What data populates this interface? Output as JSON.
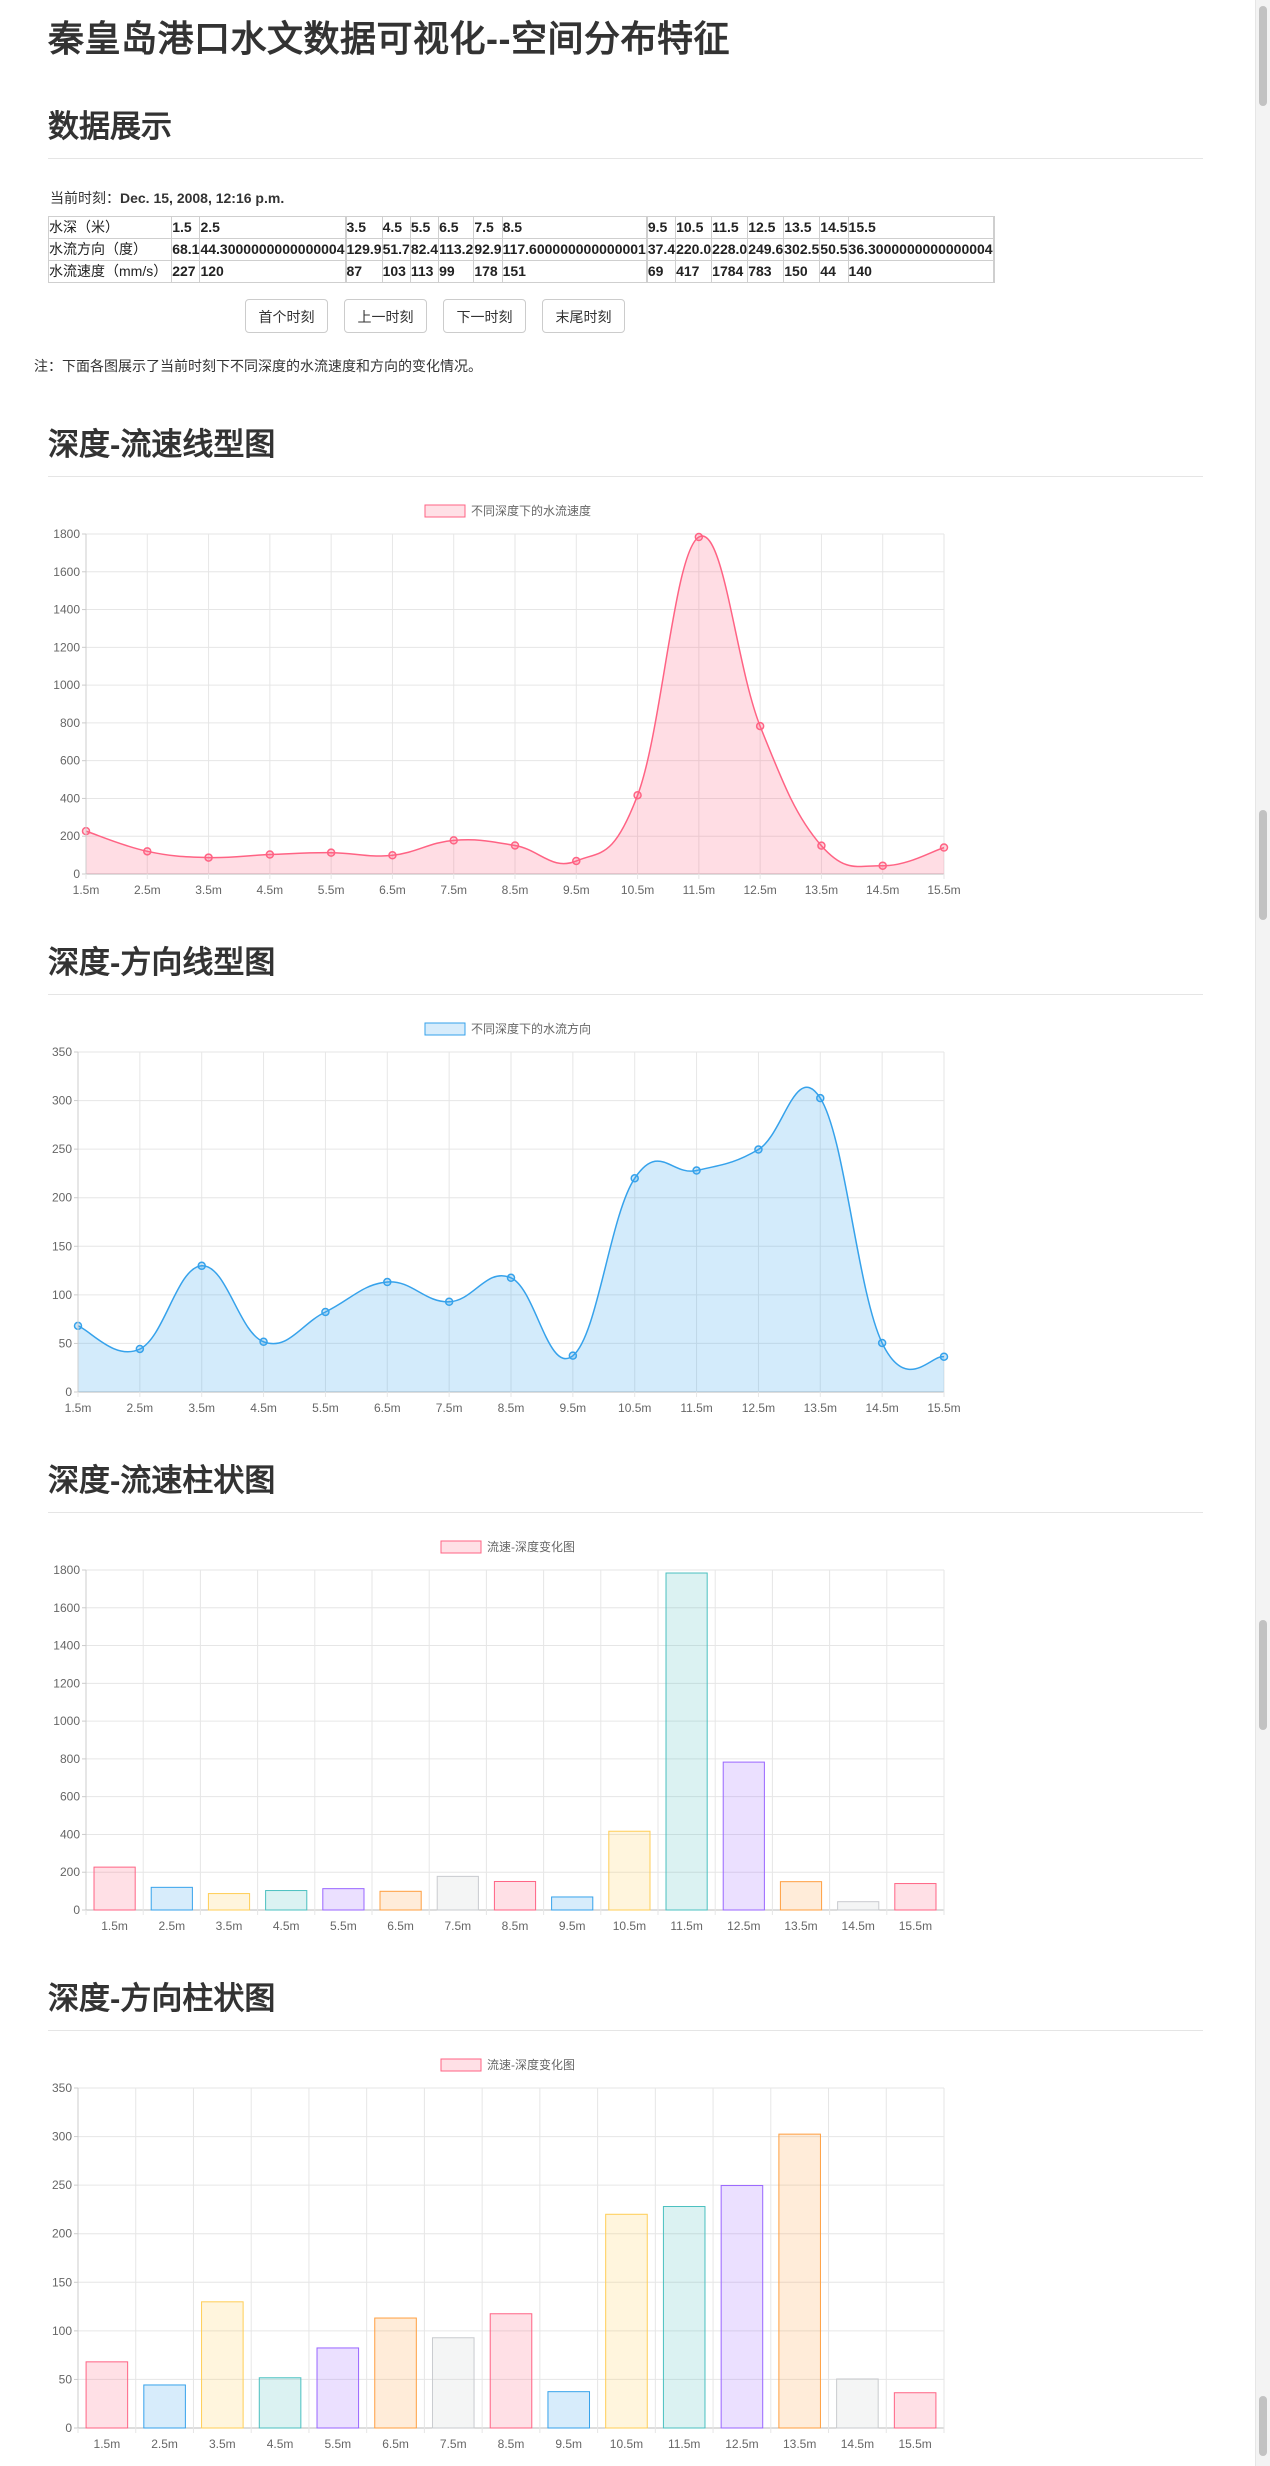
{
  "page": {
    "title": "秦皇岛港口水文数据可视化--空间分布特征",
    "section_display": "数据展示",
    "current_time_label": "当前时刻：",
    "current_time_value": "Dec. 15, 2008, 12:16 p.m.",
    "note": "注：下面各图展示了当前时刻下不同深度的水流速度和方向的变化情况。"
  },
  "table": {
    "rows": [
      {
        "label": "水深（米）",
        "values": [
          "1.5",
          "2.5",
          "",
          "3.5",
          "4.5",
          "5.5",
          "6.5",
          "7.5",
          "8.5",
          "",
          "9.5",
          "10.5",
          "11.5",
          "12.5",
          "13.5",
          "14.5",
          "15.5",
          ""
        ]
      },
      {
        "label": "水流方向（度）",
        "values": [
          "68.1",
          "44.3000000000000004",
          "",
          "129.9",
          "51.7",
          "82.4",
          "113.2",
          "92.9",
          "117.600000000000001",
          "",
          "37.4",
          "220.0",
          "228.0",
          "249.6",
          "302.5",
          "50.5",
          "36.3000000000000004",
          ""
        ]
      },
      {
        "label": "水流速度（mm/s）",
        "values": [
          "227",
          "120",
          "",
          "87",
          "103",
          "113",
          "99",
          "178",
          "151",
          "",
          "69",
          "417",
          "1784",
          "783",
          "150",
          "44",
          "140",
          ""
        ]
      }
    ]
  },
  "buttons": {
    "first": "首个时刻",
    "prev": "上一时刻",
    "next": "下一时刻",
    "last": "末尾时刻"
  },
  "sections": {
    "speed_line": "深度-流速线型图",
    "dir_line": "深度-方向线型图",
    "speed_bar": "深度-流速柱状图",
    "dir_bar": "深度-方向柱状图"
  },
  "chart_data": [
    {
      "type": "line",
      "title": "",
      "legend": "不同深度下的水流速度",
      "categories": [
        "1.5m",
        "2.5m",
        "3.5m",
        "4.5m",
        "5.5m",
        "6.5m",
        "7.5m",
        "8.5m",
        "9.5m",
        "10.5m",
        "11.5m",
        "12.5m",
        "13.5m",
        "14.5m",
        "15.5m"
      ],
      "values": [
        227,
        120,
        87,
        103,
        113,
        99,
        178,
        151,
        69,
        417,
        1784,
        783,
        150,
        44,
        140
      ],
      "ylim": [
        0,
        1800
      ],
      "yticks": [
        0,
        200,
        400,
        600,
        800,
        1000,
        1200,
        1400,
        1600,
        1800
      ],
      "color": "#ff6384",
      "fill": "rgba(255,99,132,0.22)",
      "grid": true,
      "legend_position": "top"
    },
    {
      "type": "line",
      "title": "",
      "legend": "不同深度下的水流方向",
      "categories": [
        "1.5m",
        "2.5m",
        "3.5m",
        "4.5m",
        "5.5m",
        "6.5m",
        "7.5m",
        "8.5m",
        "9.5m",
        "10.5m",
        "11.5m",
        "12.5m",
        "13.5m",
        "14.5m",
        "15.5m"
      ],
      "values": [
        68.1,
        44.3,
        129.9,
        51.7,
        82.4,
        113.2,
        92.9,
        117.6,
        37.4,
        220.0,
        228.0,
        249.6,
        302.5,
        50.5,
        36.3
      ],
      "ylim": [
        0,
        350
      ],
      "yticks": [
        0,
        50,
        100,
        150,
        200,
        250,
        300,
        350
      ],
      "color": "#36a2eb",
      "fill": "rgba(54,162,235,0.22)",
      "grid": true,
      "legend_position": "top"
    },
    {
      "type": "bar",
      "title": "",
      "legend": "流速-深度变化图",
      "categories": [
        "1.5m",
        "2.5m",
        "3.5m",
        "4.5m",
        "5.5m",
        "6.5m",
        "7.5m",
        "8.5m",
        "9.5m",
        "10.5m",
        "11.5m",
        "12.5m",
        "13.5m",
        "14.5m",
        "15.5m"
      ],
      "values": [
        227,
        120,
        87,
        103,
        113,
        99,
        178,
        151,
        69,
        417,
        1784,
        783,
        150,
        44,
        140
      ],
      "ylim": [
        0,
        1800
      ],
      "yticks": [
        0,
        200,
        400,
        600,
        800,
        1000,
        1200,
        1400,
        1600,
        1800
      ],
      "bar_colors": [
        "#ff6384",
        "#36a2eb",
        "#ffce56",
        "#4bc0c0",
        "#9966ff",
        "#ff9f40",
        "#c9cbcf"
      ],
      "grid": true,
      "legend_position": "top"
    },
    {
      "type": "bar",
      "title": "",
      "legend": "流速-深度变化图",
      "categories": [
        "1.5m",
        "2.5m",
        "3.5m",
        "4.5m",
        "5.5m",
        "6.5m",
        "7.5m",
        "8.5m",
        "9.5m",
        "10.5m",
        "11.5m",
        "12.5m",
        "13.5m",
        "14.5m",
        "15.5m"
      ],
      "values": [
        68.1,
        44.3,
        129.9,
        51.7,
        82.4,
        113.2,
        92.9,
        117.6,
        37.4,
        220.0,
        228.0,
        249.6,
        302.5,
        50.5,
        36.3
      ],
      "ylim": [
        0,
        350
      ],
      "yticks": [
        0,
        50,
        100,
        150,
        200,
        250,
        300,
        350
      ],
      "bar_colors": [
        "#ff6384",
        "#36a2eb",
        "#ffce56",
        "#4bc0c0",
        "#9966ff",
        "#ff9f40",
        "#c9cbcf"
      ],
      "grid": true,
      "legend_position": "top"
    }
  ]
}
